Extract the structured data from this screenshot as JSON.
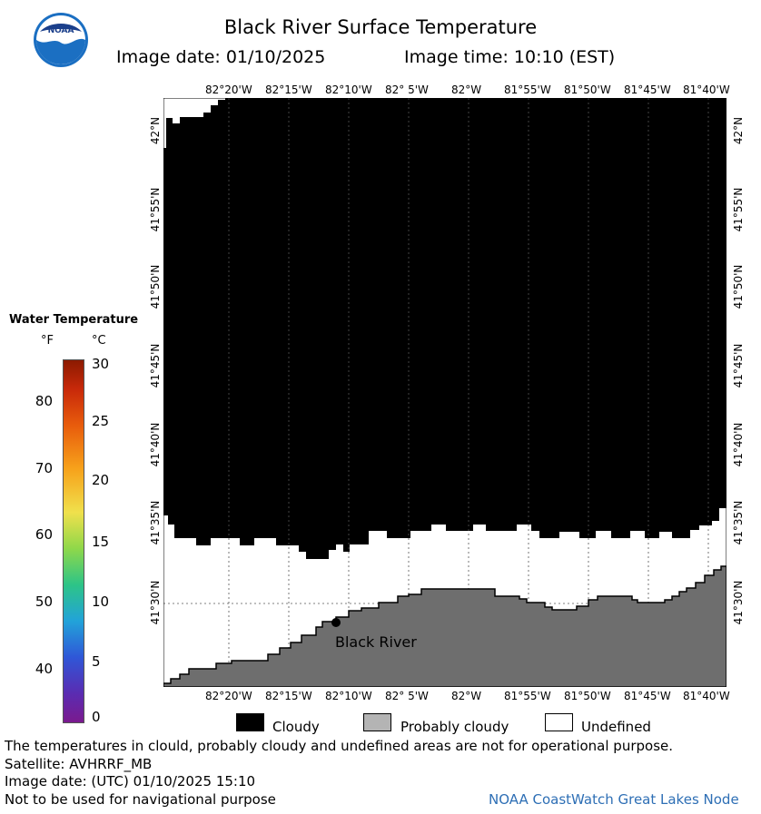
{
  "header": {
    "title": "Black River Surface Temperature",
    "date_text": "Image date: 01/10/2025",
    "time_text": "Image time: 10:10 (EST)",
    "logo_text": "NOAA"
  },
  "map": {
    "longitude_labels": [
      "82°20'W",
      "82°15'W",
      "82°10'W",
      "82° 5'W",
      "82°W",
      "81°55'W",
      "81°50'W",
      "81°45'W",
      "81°40'W"
    ],
    "latitude_labels": [
      "42°N",
      "41°55'N",
      "41°50'N",
      "41°45'N",
      "41°40'N",
      "41°35'N",
      "41°30'N"
    ],
    "station_label": "Black River",
    "colors": {
      "cloudy": "#000000",
      "land": "#6e6e6e",
      "undefined": "#ffffff"
    }
  },
  "legend": {
    "title": "Water Temperature",
    "unit_f": "°F",
    "unit_c": "°C",
    "f_ticks": [
      "80",
      "70",
      "60",
      "50",
      "40"
    ],
    "c_ticks": [
      "30",
      "25",
      "20",
      "15",
      "10",
      "5",
      "0"
    ]
  },
  "key": {
    "cloudy": "Cloudy",
    "probably_cloudy": "Probably cloudy",
    "undefined": "Undefined",
    "colors": {
      "cloudy": "#000000",
      "probably_cloudy": "#b4b4b4",
      "undefined": "#ffffff"
    }
  },
  "footer": {
    "note": "The temperatures in clould, probably cloudy and undefined areas are not for operational purpose.",
    "satellite": "Satellite: AVHRRF_MB",
    "utc_date": "Image date: (UTC) 01/10/2025   15:10",
    "nav_warning": "Not to be used for navigational purpose",
    "node": "NOAA CoastWatch Great Lakes Node"
  }
}
